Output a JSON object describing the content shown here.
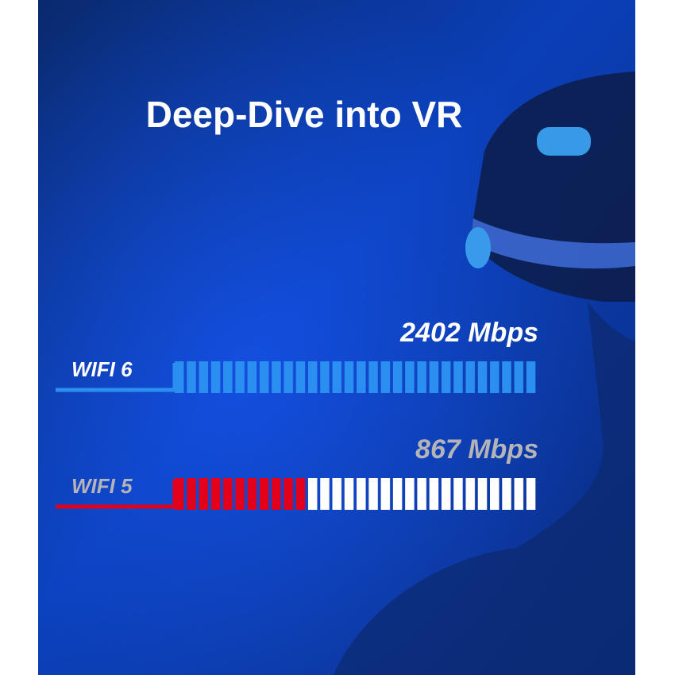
{
  "chart_data": {
    "type": "bar",
    "orientation": "horizontal",
    "title": "Deep-Dive into VR",
    "categories": [
      "WIFI 6",
      "WIFI 5"
    ],
    "values": [
      2402,
      867
    ],
    "value_labels": [
      "2402 Mbps",
      "867 Mbps"
    ],
    "colors": [
      "#2b8ff2",
      "#e3001b"
    ],
    "label_colors": [
      "#ffffff",
      "#b4b4b8"
    ],
    "track_color": "#ffffff",
    "xlim": [
      0,
      2402
    ]
  }
}
